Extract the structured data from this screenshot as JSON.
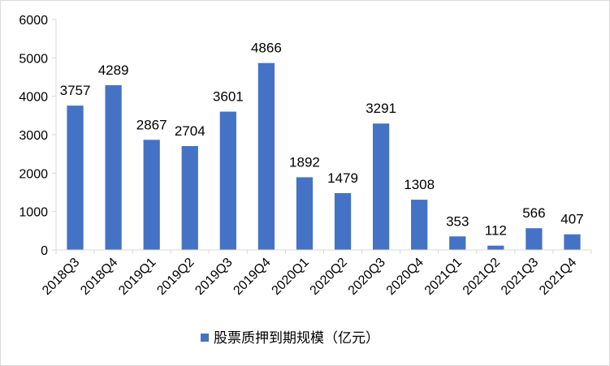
{
  "chart_data": {
    "type": "bar",
    "title": "",
    "xlabel": "",
    "ylabel": "",
    "ylim": [
      0,
      6000
    ],
    "yticks": [
      0,
      1000,
      2000,
      3000,
      4000,
      5000,
      6000
    ],
    "grid": false,
    "legend_position": "bottom",
    "categories": [
      "2018Q3",
      "2018Q4",
      "2019Q1",
      "2019Q2",
      "2019Q3",
      "2019Q4",
      "2020Q1",
      "2020Q2",
      "2020Q3",
      "2020Q4",
      "2021Q1",
      "2021Q2",
      "2021Q3",
      "2021Q4"
    ],
    "series": [
      {
        "name": "股票质押到期规模（亿元）",
        "color": "#4472c4",
        "values": [
          3757,
          4289,
          2867,
          2704,
          3601,
          4866,
          1892,
          1479,
          3291,
          1308,
          353,
          112,
          566,
          407
        ],
        "labels": [
          "3757",
          "4289",
          "2867",
          "2704",
          "3601",
          "4866",
          "1892",
          "1479",
          "3291",
          "1308",
          "353",
          "112",
          "566",
          "407"
        ]
      }
    ]
  }
}
